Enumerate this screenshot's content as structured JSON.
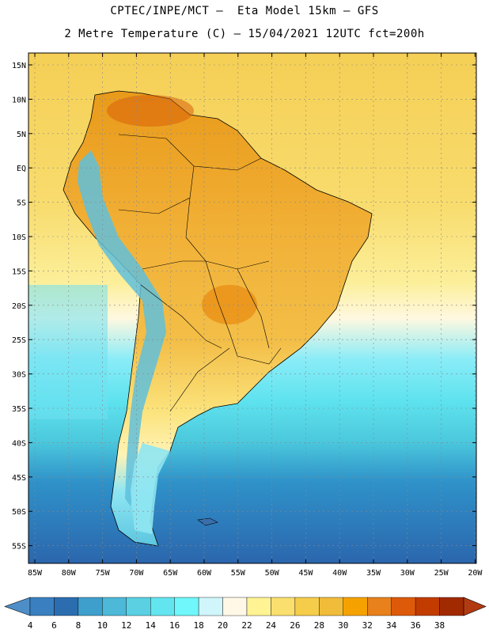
{
  "title_line1": "CPTEC/INPE/MCT –  Eta Model 15km – GFS",
  "title_line2": "2 Metre Temperature (C) – 15/04/2021 12UTC fct=200h",
  "lat_labels": [
    "15N",
    "10N",
    "5N",
    "EQ",
    "5S",
    "10S",
    "15S",
    "20S",
    "25S",
    "30S",
    "35S",
    "40S",
    "45S",
    "50S",
    "55S"
  ],
  "lon_labels": [
    "85W",
    "80W",
    "75W",
    "70W",
    "65W",
    "60W",
    "55W",
    "50W",
    "45W",
    "40W",
    "35W",
    "30W",
    "25W",
    "20W"
  ],
  "colorbar": {
    "labels": [
      "4",
      "6",
      "8",
      "10",
      "12",
      "14",
      "16",
      "18",
      "20",
      "22",
      "24",
      "26",
      "28",
      "30",
      "32",
      "34",
      "36",
      "38"
    ],
    "colors": [
      "#4d8ec8",
      "#3a7fbf",
      "#2c6db0",
      "#3f9fcc",
      "#4db8d8",
      "#5bd0e3",
      "#63e5ef",
      "#6ff7fb",
      "#d0f5fb",
      "#fff8e6",
      "#fff394",
      "#fbdf6e",
      "#f5cd4a",
      "#f0bc3a",
      "#f5a200",
      "#e8811b",
      "#dd5a0a",
      "#c23c00",
      "#a12a00",
      "#b23a10"
    ]
  }
}
